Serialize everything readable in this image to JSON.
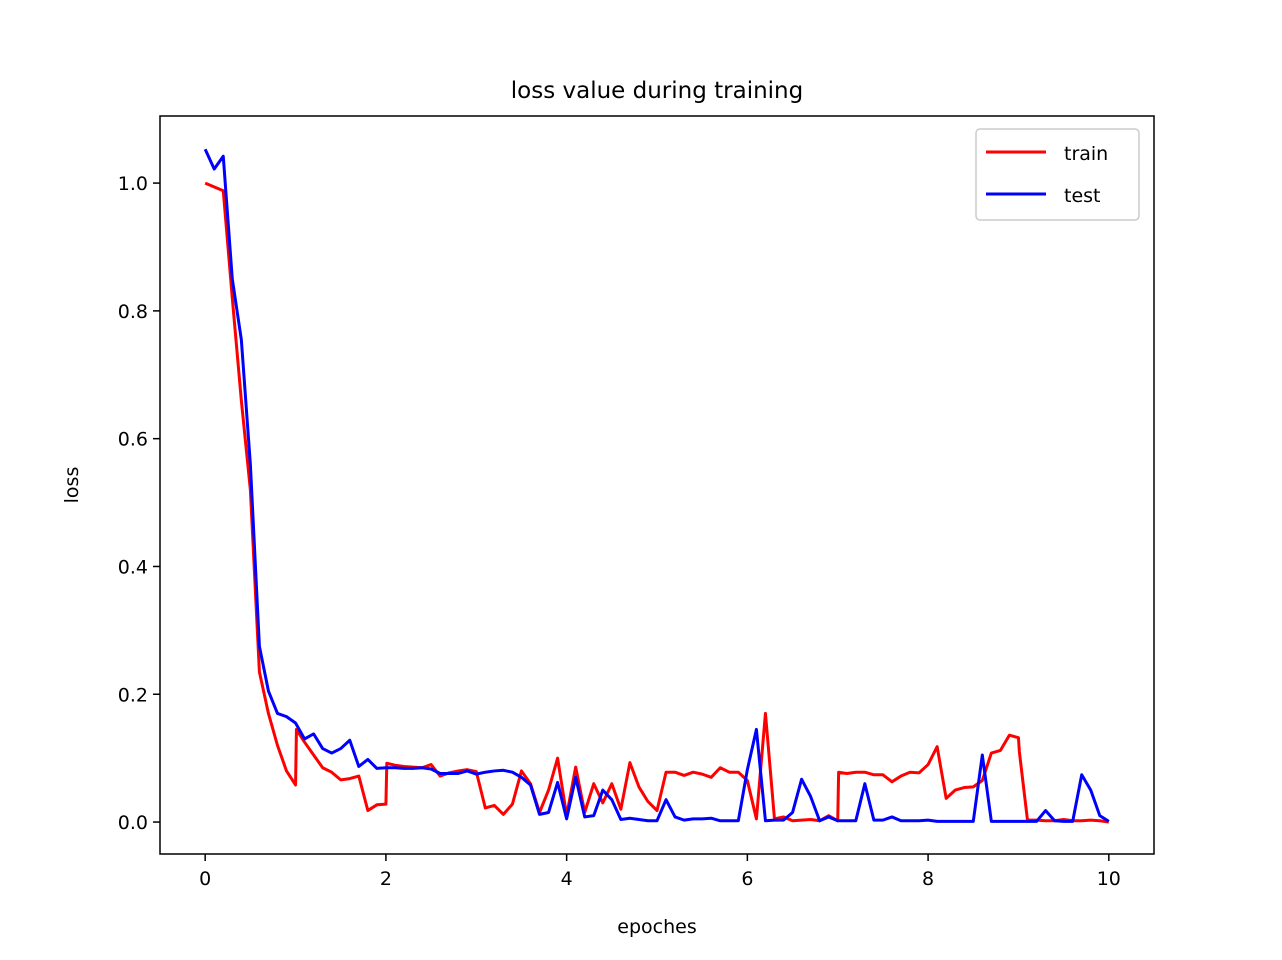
{
  "chart_data": {
    "type": "line",
    "title": "loss value during training",
    "xlabel": "epoches",
    "ylabel": "loss",
    "xlim": [
      -0.5,
      10.5
    ],
    "ylim": [
      -0.05,
      1.105
    ],
    "xticks": [
      0,
      2,
      4,
      6,
      8,
      10
    ],
    "yticks": [
      0.0,
      0.2,
      0.4,
      0.6,
      0.8,
      1.0
    ],
    "xtick_labels": [
      "0",
      "2",
      "4",
      "6",
      "8",
      "10"
    ],
    "ytick_labels": [
      "0.0",
      "0.2",
      "0.4",
      "0.6",
      "0.8",
      "1.0"
    ],
    "grid": false,
    "legend": "top-right",
    "series": [
      {
        "name": "train",
        "color": "#ff0000",
        "x": [
          0,
          0.2,
          0.3,
          0.4,
          0.5,
          0.6,
          0.7,
          0.8,
          0.9,
          1.0,
          1.01,
          1.1,
          1.2,
          1.3,
          1.4,
          1.5,
          1.6,
          1.7,
          1.8,
          1.9,
          2.0,
          2.01,
          2.1,
          2.2,
          2.3,
          2.4,
          2.5,
          2.6,
          2.7,
          2.8,
          2.9,
          3.0,
          3.1,
          3.2,
          3.3,
          3.4,
          3.5,
          3.6,
          3.7,
          3.8,
          3.9,
          4.0,
          4.1,
          4.2,
          4.3,
          4.4,
          4.5,
          4.6,
          4.7,
          4.8,
          4.9,
          5.0,
          5.1,
          5.2,
          5.3,
          5.4,
          5.5,
          5.6,
          5.7,
          5.8,
          5.9,
          6.0,
          6.1,
          6.2,
          6.3,
          6.4,
          6.5,
          6.6,
          6.7,
          6.8,
          6.9,
          7.0,
          7.01,
          7.1,
          7.2,
          7.3,
          7.4,
          7.5,
          7.6,
          7.7,
          7.8,
          7.9,
          8.0,
          8.1,
          8.2,
          8.3,
          8.4,
          8.5,
          8.6,
          8.7,
          8.8,
          8.9,
          9.0,
          9.01,
          9.1,
          9.2,
          9.3,
          9.4,
          9.5,
          9.6,
          9.7,
          9.8,
          9.9,
          10.0
        ],
        "y": [
          1.0,
          0.988,
          0.82,
          0.66,
          0.52,
          0.235,
          0.17,
          0.12,
          0.08,
          0.058,
          0.145,
          0.125,
          0.105,
          0.085,
          0.078,
          0.066,
          0.068,
          0.072,
          0.018,
          0.027,
          0.028,
          0.092,
          0.089,
          0.087,
          0.086,
          0.085,
          0.09,
          0.072,
          0.077,
          0.08,
          0.082,
          0.079,
          0.022,
          0.026,
          0.012,
          0.028,
          0.08,
          0.06,
          0.015,
          0.05,
          0.1,
          0.01,
          0.086,
          0.015,
          0.06,
          0.03,
          0.06,
          0.02,
          0.093,
          0.055,
          0.032,
          0.018,
          0.078,
          0.078,
          0.073,
          0.078,
          0.075,
          0.07,
          0.085,
          0.078,
          0.078,
          0.065,
          0.005,
          0.17,
          0.005,
          0.008,
          0.002,
          0.003,
          0.004,
          0.002,
          0.01,
          0.002,
          0.078,
          0.076,
          0.078,
          0.078,
          0.074,
          0.074,
          0.063,
          0.072,
          0.078,
          0.077,
          0.09,
          0.118,
          0.037,
          0.05,
          0.054,
          0.055,
          0.065,
          0.108,
          0.112,
          0.136,
          0.132,
          0.11,
          0.003,
          0.003,
          0.002,
          0.002,
          0.004,
          0.002,
          0.002,
          0.003,
          0.002,
          0.0
        ]
      },
      {
        "name": "test",
        "color": "#0000ff",
        "x": [
          0,
          0.1,
          0.2,
          0.3,
          0.4,
          0.5,
          0.6,
          0.7,
          0.8,
          0.9,
          1.0,
          1.1,
          1.2,
          1.3,
          1.4,
          1.5,
          1.6,
          1.7,
          1.8,
          1.9,
          2.0,
          2.1,
          2.2,
          2.3,
          2.4,
          2.5,
          2.6,
          2.7,
          2.8,
          2.9,
          3.0,
          3.1,
          3.2,
          3.3,
          3.4,
          3.5,
          3.6,
          3.7,
          3.8,
          3.9,
          4.0,
          4.1,
          4.2,
          4.3,
          4.4,
          4.5,
          4.6,
          4.7,
          4.8,
          4.9,
          5.0,
          5.1,
          5.2,
          5.3,
          5.4,
          5.5,
          5.6,
          5.7,
          5.8,
          5.9,
          6.0,
          6.1,
          6.2,
          6.3,
          6.4,
          6.5,
          6.6,
          6.7,
          6.8,
          6.9,
          7.0,
          7.1,
          7.2,
          7.3,
          7.4,
          7.5,
          7.6,
          7.7,
          7.8,
          7.9,
          8.0,
          8.1,
          8.2,
          8.3,
          8.4,
          8.5,
          8.6,
          8.7,
          8.8,
          8.9,
          9.0,
          9.1,
          9.2,
          9.3,
          9.4,
          9.5,
          9.6,
          9.7,
          9.8,
          9.9,
          10.0
        ],
        "y": [
          1.053,
          1.022,
          1.042,
          0.85,
          0.755,
          0.56,
          0.275,
          0.205,
          0.17,
          0.165,
          0.155,
          0.13,
          0.138,
          0.115,
          0.108,
          0.115,
          0.128,
          0.087,
          0.098,
          0.084,
          0.085,
          0.085,
          0.084,
          0.084,
          0.085,
          0.083,
          0.076,
          0.076,
          0.076,
          0.08,
          0.075,
          0.078,
          0.08,
          0.081,
          0.078,
          0.07,
          0.058,
          0.012,
          0.015,
          0.062,
          0.005,
          0.07,
          0.008,
          0.01,
          0.05,
          0.035,
          0.004,
          0.006,
          0.004,
          0.002,
          0.002,
          0.035,
          0.008,
          0.003,
          0.005,
          0.005,
          0.006,
          0.002,
          0.002,
          0.002,
          0.082,
          0.145,
          0.002,
          0.003,
          0.003,
          0.015,
          0.067,
          0.04,
          0.002,
          0.008,
          0.002,
          0.002,
          0.002,
          0.06,
          0.003,
          0.003,
          0.008,
          0.002,
          0.002,
          0.002,
          0.003,
          0.001,
          0.001,
          0.001,
          0.001,
          0.001,
          0.105,
          0.001,
          0.001,
          0.001,
          0.001,
          0.001,
          0.001,
          0.018,
          0.002,
          0.001,
          0.001,
          0.074,
          0.05,
          0.01,
          0.001
        ]
      }
    ]
  }
}
